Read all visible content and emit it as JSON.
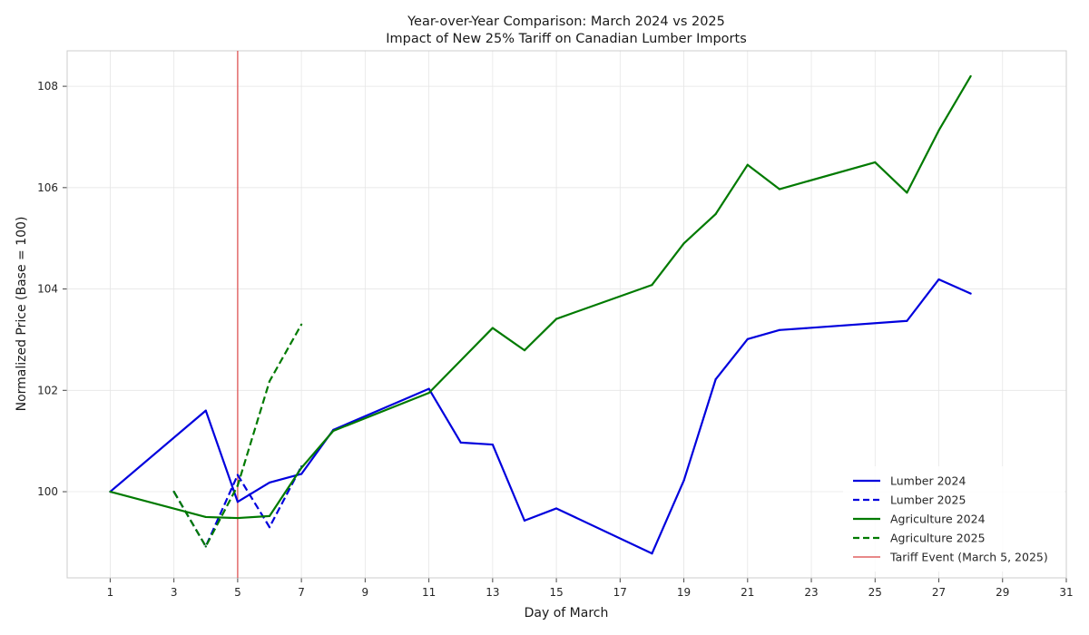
{
  "chart_data": {
    "type": "line",
    "title": "Year-over-Year Comparison: March 2024 vs 2025",
    "subtitle": "Impact of New 25% Tariff on Canadian Lumber Imports",
    "xlabel": "Day of March",
    "ylabel": "Normalized Price (Base = 100)",
    "xlim": [
      -0.35,
      31
    ],
    "ylim": [
      98.3,
      108.7
    ],
    "xticks": [
      1,
      3,
      5,
      7,
      9,
      11,
      13,
      15,
      17,
      19,
      21,
      23,
      25,
      27,
      29,
      31
    ],
    "xtick_labels": [
      "1",
      "3",
      "5",
      "7",
      "9",
      "11",
      "13",
      "15",
      "17",
      "19",
      "21",
      "23",
      "25",
      "27",
      "29",
      "31"
    ],
    "yticks": [
      100,
      102,
      104,
      106,
      108
    ],
    "ytick_labels": [
      "100",
      "102",
      "104",
      "106",
      "108"
    ],
    "grid": true,
    "legend_position": "lower-right",
    "series": [
      {
        "name": "Lumber 2024",
        "color": "#0000dd",
        "style": "solid",
        "x": [
          1,
          4,
          5,
          6,
          7,
          8,
          11,
          12,
          13,
          14,
          15,
          18,
          19,
          20,
          21,
          22,
          26,
          27,
          28
        ],
        "y": [
          100.0,
          101.6,
          99.8,
          100.18,
          100.35,
          101.22,
          102.03,
          100.97,
          100.93,
          99.43,
          99.67,
          98.78,
          100.22,
          102.22,
          103.01,
          103.19,
          103.37,
          104.19,
          103.91
        ]
      },
      {
        "name": "Lumber 2025",
        "color": "#0000dd",
        "style": "dashed",
        "x": [
          3,
          4,
          5,
          6,
          7
        ],
        "y": [
          100.0,
          98.92,
          100.33,
          99.3,
          100.5
        ]
      },
      {
        "name": "Agriculture 2024",
        "color": "#007a00",
        "style": "solid",
        "x": [
          1,
          4,
          5,
          6,
          7,
          8,
          11,
          13,
          14,
          15,
          18,
          19,
          20,
          21,
          22,
          25,
          26,
          27,
          28
        ],
        "y": [
          100.0,
          99.5,
          99.48,
          99.52,
          100.47,
          101.2,
          101.95,
          103.23,
          102.79,
          103.41,
          104.08,
          104.9,
          105.48,
          106.45,
          105.97,
          106.5,
          105.9,
          107.13,
          108.2
        ]
      },
      {
        "name": "Agriculture 2025",
        "color": "#007a00",
        "style": "dashed",
        "x": [
          3,
          4,
          5,
          6,
          7
        ],
        "y": [
          100.0,
          98.92,
          100.12,
          102.18,
          103.3
        ]
      }
    ],
    "annotations": [
      {
        "type": "vline",
        "x": 5,
        "label": "Tariff Event (March 5, 2025)",
        "color": "#e06060"
      }
    ]
  }
}
